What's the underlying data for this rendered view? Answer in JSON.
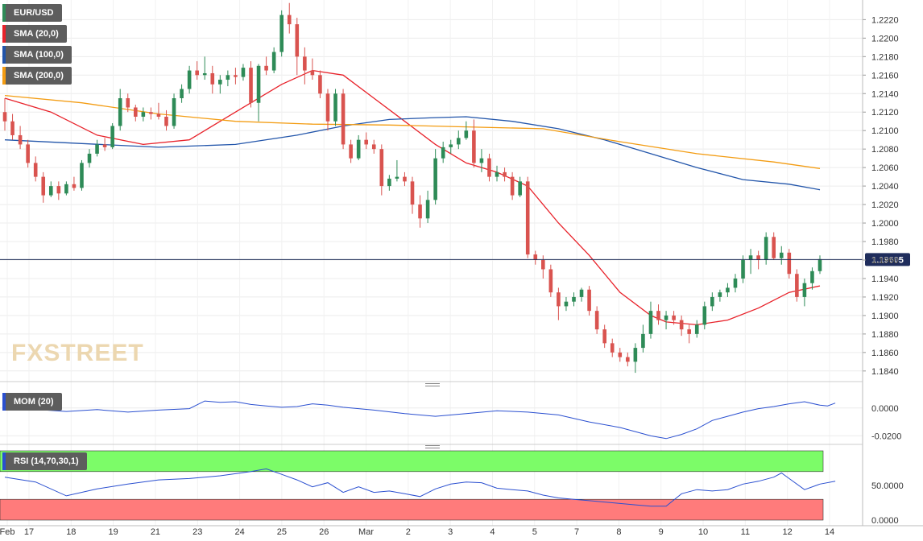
{
  "instrument": "EUR/USD",
  "legend": [
    {
      "label": "EUR/USD",
      "color": "#2e8b57"
    },
    {
      "label": "SMA (20,0)",
      "color": "#e8222a"
    },
    {
      "label": "SMA (100,0)",
      "color": "#2255aa"
    },
    {
      "label": "SMA (200,0)",
      "color": "#f39c12"
    }
  ],
  "watermark": "FXSTREET",
  "price_tag": "1.19605",
  "indicators": {
    "mom_label": "MOM (20)",
    "rsi_label": "RSI (14,70,30,1)",
    "mom_ticks": [
      "0.0000",
      "-0.0200"
    ],
    "rsi_ticks": [
      "50.0000",
      "0.0000"
    ]
  },
  "colors": {
    "bull": "#2e8b57",
    "bear": "#d9534f",
    "sma20": "#e8222a",
    "sma100": "#2255aa",
    "sma200": "#f39c12",
    "indicator": "#2a4fd0",
    "rsi_overbought": "#7cfc68",
    "rsi_oversold": "#ff7b7b"
  },
  "chart_data": {
    "type": "candlestick",
    "timeframe": "4h",
    "ylim": [
      1.1832,
      1.2236
    ],
    "y_ticks": [
      "1.2220",
      "1.2200",
      "1.2180",
      "1.2160",
      "1.2140",
      "1.2120",
      "1.2100",
      "1.2080",
      "1.2060",
      "1.2040",
      "1.2020",
      "1.2000",
      "1.1980",
      "1.1960",
      "1.1940",
      "1.1920",
      "1.1900",
      "1.1880",
      "1.1860",
      "1.1840"
    ],
    "x_tick_labels": [
      "Feb",
      "17",
      "18",
      "19",
      "21",
      "23",
      "24",
      "25",
      "26",
      "Mar",
      "2",
      "3",
      "4",
      "5",
      "7",
      "8",
      "9",
      "10",
      "11",
      "12",
      "14"
    ],
    "last_price": 1.19605,
    "ohlc": [
      [
        1.212,
        1.2135,
        1.21,
        1.211
      ],
      [
        1.211,
        1.2118,
        1.209,
        1.2095
      ],
      [
        1.2095,
        1.2105,
        1.208,
        1.2085
      ],
      [
        1.2085,
        1.209,
        1.206,
        1.2065
      ],
      [
        1.2065,
        1.2072,
        1.2045,
        1.205
      ],
      [
        1.205,
        1.2055,
        1.2022,
        1.203
      ],
      [
        1.203,
        1.2045,
        1.2028,
        1.204
      ],
      [
        1.204,
        1.2045,
        1.2025,
        1.2032
      ],
      [
        1.2032,
        1.2045,
        1.203,
        1.2042
      ],
      [
        1.2042,
        1.205,
        1.2035,
        1.2038
      ],
      [
        1.2038,
        1.2068,
        1.2035,
        1.2065
      ],
      [
        1.2065,
        1.208,
        1.206,
        1.2075
      ],
      [
        1.2075,
        1.209,
        1.2072,
        1.2085
      ],
      [
        1.2085,
        1.2092,
        1.2078,
        1.2082
      ],
      [
        1.2082,
        1.2108,
        1.208,
        1.2105
      ],
      [
        1.2105,
        1.2145,
        1.21,
        1.2135
      ],
      [
        1.2135,
        1.214,
        1.212,
        1.2125
      ],
      [
        1.2125,
        1.2128,
        1.211,
        1.2115
      ],
      [
        1.2115,
        1.2125,
        1.211,
        1.212
      ],
      [
        1.212,
        1.2125,
        1.2112,
        1.2118
      ],
      [
        1.2118,
        1.213,
        1.2112,
        1.2115
      ],
      [
        1.2115,
        1.2122,
        1.21,
        1.2105
      ],
      [
        1.2105,
        1.214,
        1.2102,
        1.2135
      ],
      [
        1.2135,
        1.215,
        1.213,
        1.2145
      ],
      [
        1.2145,
        1.217,
        1.214,
        1.2165
      ],
      [
        1.2165,
        1.2175,
        1.2155,
        1.216
      ],
      [
        1.216,
        1.218,
        1.2155,
        1.2162
      ],
      [
        1.2162,
        1.217,
        1.214,
        1.215
      ],
      [
        1.215,
        1.216,
        1.214,
        1.2155
      ],
      [
        1.2155,
        1.2165,
        1.2148,
        1.216
      ],
      [
        1.216,
        1.2168,
        1.215,
        1.2158
      ],
      [
        1.2158,
        1.2172,
        1.2154,
        1.2168
      ],
      [
        1.2168,
        1.2175,
        1.2125,
        1.213
      ],
      [
        1.213,
        1.2172,
        1.211,
        1.217
      ],
      [
        1.217,
        1.218,
        1.216,
        1.2165
      ],
      [
        1.2165,
        1.219,
        1.2162,
        1.2185
      ],
      [
        1.2185,
        1.223,
        1.218,
        1.2225
      ],
      [
        1.2225,
        1.2238,
        1.2205,
        1.2215
      ],
      [
        1.2215,
        1.2222,
        1.216,
        1.218
      ],
      [
        1.218,
        1.219,
        1.215,
        1.2165
      ],
      [
        1.2165,
        1.2178,
        1.2155,
        1.216
      ],
      [
        1.216,
        1.2165,
        1.2135,
        1.214
      ],
      [
        1.214,
        1.2145,
        1.21,
        1.211
      ],
      [
        1.211,
        1.2145,
        1.2105,
        1.214
      ],
      [
        1.214,
        1.2145,
        1.208,
        1.2085
      ],
      [
        1.2085,
        1.209,
        1.2065,
        1.207
      ],
      [
        1.207,
        1.2095,
        1.2068,
        1.209
      ],
      [
        1.209,
        1.2098,
        1.208,
        1.2085
      ],
      [
        1.2085,
        1.209,
        1.2075,
        1.208
      ],
      [
        1.208,
        1.2085,
        1.203,
        1.204
      ],
      [
        1.204,
        1.2052,
        1.2035,
        1.2048
      ],
      [
        1.2048,
        1.2068,
        1.2045,
        1.205
      ],
      [
        1.205,
        1.2055,
        1.204,
        1.2045
      ],
      [
        1.2045,
        1.205,
        1.201,
        1.202
      ],
      [
        1.202,
        1.203,
        1.1995,
        1.2005
      ],
      [
        1.2005,
        1.2035,
        1.2,
        1.2025
      ],
      [
        1.2025,
        1.208,
        1.202,
        1.207
      ],
      [
        1.207,
        1.2088,
        1.2065,
        1.2082
      ],
      [
        1.2082,
        1.209,
        1.2075,
        1.2085
      ],
      [
        1.2085,
        1.21,
        1.208,
        1.2092
      ],
      [
        1.2092,
        1.211,
        1.209,
        1.21
      ],
      [
        1.21,
        1.2112,
        1.206,
        1.2065
      ],
      [
        1.2065,
        1.208,
        1.2055,
        1.207
      ],
      [
        1.207,
        1.2075,
        1.2045,
        1.205
      ],
      [
        1.205,
        1.2062,
        1.2045,
        1.2055
      ],
      [
        1.2055,
        1.206,
        1.2045,
        1.205
      ],
      [
        1.205,
        1.2055,
        1.2025,
        1.203
      ],
      [
        1.203,
        1.205,
        1.2028,
        1.2045
      ],
      [
        1.2045,
        1.205,
        1.1962,
        1.1966
      ],
      [
        1.1966,
        1.197,
        1.1955,
        1.196
      ],
      [
        1.196,
        1.1965,
        1.194,
        1.195
      ],
      [
        1.195,
        1.1955,
        1.192,
        1.1925
      ],
      [
        1.1925,
        1.193,
        1.1895,
        1.191
      ],
      [
        1.191,
        1.192,
        1.1905,
        1.1915
      ],
      [
        1.1915,
        1.1925,
        1.191,
        1.192
      ],
      [
        1.192,
        1.193,
        1.1915,
        1.1928
      ],
      [
        1.1928,
        1.1932,
        1.19,
        1.1905
      ],
      [
        1.1905,
        1.191,
        1.188,
        1.1885
      ],
      [
        1.1885,
        1.189,
        1.1865,
        1.187
      ],
      [
        1.187,
        1.1875,
        1.1855,
        1.186
      ],
      [
        1.186,
        1.1865,
        1.185,
        1.1855
      ],
      [
        1.1855,
        1.186,
        1.1845,
        1.185
      ],
      [
        1.185,
        1.187,
        1.1838,
        1.1865
      ],
      [
        1.1865,
        1.189,
        1.186,
        1.188
      ],
      [
        1.188,
        1.1915,
        1.1875,
        1.1905
      ],
      [
        1.1905,
        1.1912,
        1.189,
        1.1895
      ],
      [
        1.1895,
        1.1905,
        1.1885,
        1.19
      ],
      [
        1.19,
        1.1905,
        1.189,
        1.1895
      ],
      [
        1.1895,
        1.19,
        1.1878,
        1.1885
      ],
      [
        1.1885,
        1.189,
        1.187,
        1.188
      ],
      [
        1.188,
        1.1895,
        1.1876,
        1.189
      ],
      [
        1.189,
        1.1915,
        1.1885,
        1.191
      ],
      [
        1.191,
        1.1925,
        1.1905,
        1.192
      ],
      [
        1.192,
        1.1928,
        1.1915,
        1.1925
      ],
      [
        1.1925,
        1.1935,
        1.192,
        1.193
      ],
      [
        1.193,
        1.1945,
        1.1925,
        1.194
      ],
      [
        1.194,
        1.1965,
        1.1935,
        1.196
      ],
      [
        1.196,
        1.1972,
        1.1945,
        1.1965
      ],
      [
        1.1965,
        1.197,
        1.195,
        1.196
      ],
      [
        1.196,
        1.199,
        1.1955,
        1.1985
      ],
      [
        1.1985,
        1.199,
        1.196,
        1.1962
      ],
      [
        1.1962,
        1.1975,
        1.1955,
        1.1968
      ],
      [
        1.1968,
        1.1972,
        1.194,
        1.1945
      ],
      [
        1.1945,
        1.195,
        1.1915,
        1.192
      ],
      [
        1.192,
        1.194,
        1.191,
        1.1935
      ],
      [
        1.1935,
        1.1952,
        1.1928,
        1.1948
      ],
      [
        1.1948,
        1.1965,
        1.1945,
        1.1961
      ]
    ],
    "series": [
      {
        "name": "SMA (20,0)",
        "values": [
          [
            0,
            1.2135
          ],
          [
            6,
            1.212
          ],
          [
            12,
            1.2095
          ],
          [
            18,
            1.2085
          ],
          [
            24,
            1.209
          ],
          [
            28,
            1.211
          ],
          [
            32,
            1.213
          ],
          [
            36,
            1.215
          ],
          [
            40,
            1.2165
          ],
          [
            44,
            1.216
          ],
          [
            48,
            1.2135
          ],
          [
            52,
            1.211
          ],
          [
            56,
            1.2085
          ],
          [
            60,
            1.2065
          ],
          [
            64,
            1.2055
          ],
          [
            68,
            1.204
          ],
          [
            72,
            1.2
          ],
          [
            76,
            1.1965
          ],
          [
            80,
            1.1925
          ],
          [
            84,
            1.19
          ],
          [
            86,
            1.1893
          ],
          [
            90,
            1.189
          ],
          [
            94,
            1.1895
          ],
          [
            98,
            1.1908
          ],
          [
            102,
            1.1925
          ],
          [
            106,
            1.1932
          ]
        ]
      },
      {
        "name": "SMA (100,0)",
        "values": [
          [
            0,
            1.209
          ],
          [
            10,
            1.2086
          ],
          [
            20,
            1.2082
          ],
          [
            30,
            1.2085
          ],
          [
            38,
            1.2095
          ],
          [
            44,
            1.2105
          ],
          [
            50,
            1.2112
          ],
          [
            56,
            1.2114
          ],
          [
            60,
            1.2115
          ],
          [
            66,
            1.211
          ],
          [
            72,
            1.2102
          ],
          [
            78,
            1.209
          ],
          [
            84,
            1.2075
          ],
          [
            90,
            1.206
          ],
          [
            96,
            1.2047
          ],
          [
            102,
            1.2042
          ],
          [
            106,
            1.2036
          ]
        ]
      },
      {
        "name": "SMA (200,0)",
        "values": [
          [
            0,
            1.2138
          ],
          [
            10,
            1.213
          ],
          [
            20,
            1.2118
          ],
          [
            30,
            1.211
          ],
          [
            40,
            1.2107
          ],
          [
            50,
            1.2106
          ],
          [
            60,
            1.2104
          ],
          [
            70,
            1.2102
          ],
          [
            80,
            1.2088
          ],
          [
            90,
            1.2075
          ],
          [
            100,
            1.2066
          ],
          [
            106,
            1.2059
          ]
        ]
      }
    ],
    "mom": {
      "ylim": [
        -0.025,
        0.012
      ],
      "ticks": [
        0.0,
        -0.02
      ],
      "values": [
        [
          0,
          -0.0005
        ],
        [
          4,
          -0.001
        ],
        [
          8,
          -0.0025
        ],
        [
          12,
          -0.0012
        ],
        [
          16,
          -0.003
        ],
        [
          20,
          -0.0015
        ],
        [
          24,
          -0.0005
        ],
        [
          26,
          0.005
        ],
        [
          28,
          0.004
        ],
        [
          30,
          0.0045
        ],
        [
          32,
          0.0025
        ],
        [
          34,
          0.0015
        ],
        [
          36,
          0.0005
        ],
        [
          38,
          0.001
        ],
        [
          40,
          0.003
        ],
        [
          42,
          0.002
        ],
        [
          44,
          0.0005
        ],
        [
          46,
          -0.0005
        ],
        [
          48,
          -0.0015
        ],
        [
          52,
          -0.004
        ],
        [
          56,
          -0.006
        ],
        [
          60,
          -0.004
        ],
        [
          64,
          -0.002
        ],
        [
          68,
          -0.003
        ],
        [
          72,
          -0.005
        ],
        [
          76,
          -0.01
        ],
        [
          80,
          -0.014
        ],
        [
          84,
          -0.02
        ],
        [
          86,
          -0.022
        ],
        [
          88,
          -0.019
        ],
        [
          90,
          -0.015
        ],
        [
          92,
          -0.009
        ],
        [
          94,
          -0.006
        ],
        [
          96,
          -0.003
        ],
        [
          98,
          -0.0005
        ],
        [
          100,
          0.001
        ],
        [
          102,
          0.003
        ],
        [
          104,
          0.0045
        ],
        [
          106,
          0.002
        ],
        [
          107,
          0.0015
        ],
        [
          108,
          0.0035
        ]
      ]
    },
    "rsi": {
      "ylim": [
        0,
        100
      ],
      "ticks": [
        50,
        0
      ],
      "overbought": 70,
      "oversold": 30,
      "values": [
        [
          0,
          62
        ],
        [
          4,
          55
        ],
        [
          8,
          35
        ],
        [
          12,
          45
        ],
        [
          16,
          52
        ],
        [
          20,
          58
        ],
        [
          24,
          60
        ],
        [
          28,
          64
        ],
        [
          32,
          70
        ],
        [
          34,
          74
        ],
        [
          36,
          66
        ],
        [
          38,
          58
        ],
        [
          40,
          48
        ],
        [
          42,
          54
        ],
        [
          44,
          40
        ],
        [
          46,
          48
        ],
        [
          48,
          40
        ],
        [
          50,
          42
        ],
        [
          52,
          38
        ],
        [
          54,
          34
        ],
        [
          56,
          45
        ],
        [
          58,
          52
        ],
        [
          60,
          55
        ],
        [
          62,
          54
        ],
        [
          64,
          46
        ],
        [
          66,
          44
        ],
        [
          68,
          42
        ],
        [
          70,
          36
        ],
        [
          72,
          32
        ],
        [
          74,
          30
        ],
        [
          76,
          28
        ],
        [
          78,
          26
        ],
        [
          80,
          24
        ],
        [
          82,
          22
        ],
        [
          84,
          20
        ],
        [
          86,
          20
        ],
        [
          88,
          38
        ],
        [
          90,
          44
        ],
        [
          92,
          42
        ],
        [
          94,
          44
        ],
        [
          96,
          52
        ],
        [
          98,
          56
        ],
        [
          100,
          62
        ],
        [
          101,
          68
        ],
        [
          102,
          60
        ],
        [
          104,
          44
        ],
        [
          106,
          52
        ],
        [
          108,
          56
        ]
      ]
    }
  }
}
